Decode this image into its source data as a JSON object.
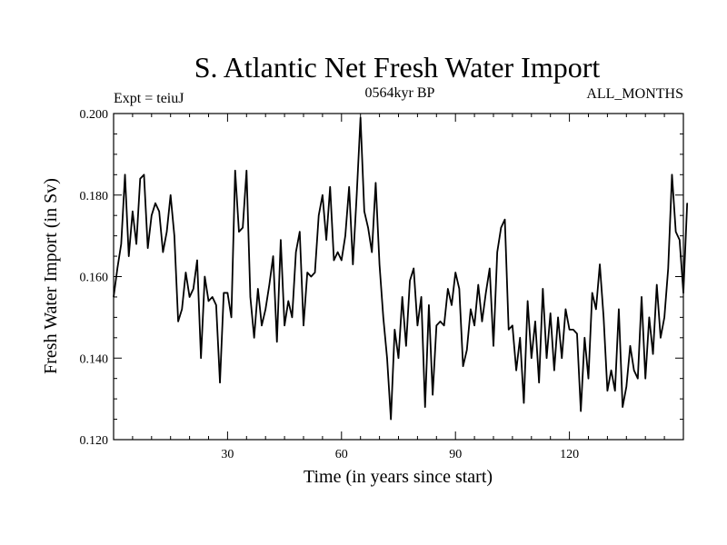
{
  "chart_data": {
    "type": "line",
    "title": "S. Atlantic Net Fresh Water Import",
    "expt_label": "Expt = teiuJ",
    "period_label": "0564kyr BP",
    "months_label": "ALL_MONTHS",
    "xlabel": "Time (in years since start)",
    "ylabel": "Fresh Water Import (in Sv)",
    "xlim": [
      0,
      150
    ],
    "ylim": [
      0.12,
      0.2
    ],
    "x_ticks": [
      30,
      60,
      90,
      120
    ],
    "y_ticks": [
      0.12,
      0.14,
      0.16,
      0.18,
      0.2
    ],
    "x_tick_labels": [
      "30",
      "60",
      "90",
      "120"
    ],
    "y_tick_labels": [
      "0.120",
      "0.140",
      "0.160",
      "0.180",
      "0.200"
    ],
    "series": [
      {
        "name": "Net Fresh Water Import",
        "x_start": 0,
        "x_step": 1,
        "values": [
          0.155,
          0.162,
          0.168,
          0.185,
          0.165,
          0.176,
          0.168,
          0.184,
          0.185,
          0.167,
          0.175,
          0.178,
          0.176,
          0.166,
          0.171,
          0.18,
          0.17,
          0.149,
          0.152,
          0.161,
          0.155,
          0.157,
          0.164,
          0.14,
          0.16,
          0.154,
          0.155,
          0.153,
          0.134,
          0.156,
          0.156,
          0.15,
          0.186,
          0.171,
          0.172,
          0.186,
          0.155,
          0.145,
          0.157,
          0.148,
          0.152,
          0.158,
          0.165,
          0.144,
          0.169,
          0.148,
          0.154,
          0.15,
          0.166,
          0.171,
          0.148,
          0.161,
          0.16,
          0.161,
          0.175,
          0.18,
          0.169,
          0.182,
          0.164,
          0.166,
          0.164,
          0.17,
          0.182,
          0.163,
          0.18,
          0.199,
          0.176,
          0.172,
          0.166,
          0.183,
          0.163,
          0.15,
          0.14,
          0.125,
          0.147,
          0.14,
          0.155,
          0.143,
          0.159,
          0.162,
          0.148,
          0.155,
          0.128,
          0.153,
          0.131,
          0.148,
          0.149,
          0.148,
          0.157,
          0.153,
          0.161,
          0.157,
          0.138,
          0.142,
          0.152,
          0.148,
          0.158,
          0.149,
          0.156,
          0.162,
          0.143,
          0.166,
          0.172,
          0.174,
          0.147,
          0.148,
          0.137,
          0.145,
          0.129,
          0.154,
          0.14,
          0.149,
          0.134,
          0.157,
          0.14,
          0.151,
          0.137,
          0.15,
          0.14,
          0.152,
          0.147,
          0.147,
          0.146,
          0.127,
          0.145,
          0.135,
          0.156,
          0.152,
          0.163,
          0.15,
          0.132,
          0.137,
          0.132,
          0.152,
          0.128,
          0.133,
          0.143,
          0.137,
          0.135,
          0.155,
          0.135,
          0.15,
          0.141,
          0.158,
          0.145,
          0.15,
          0.162,
          0.185,
          0.171,
          0.169,
          0.156,
          0.178
        ]
      }
    ]
  }
}
